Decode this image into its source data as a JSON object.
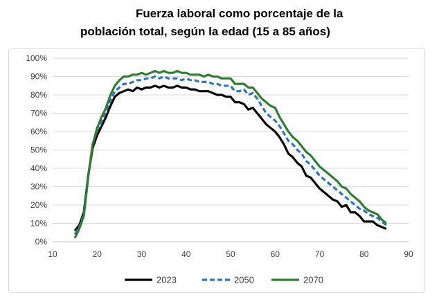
{
  "chart_data": {
    "type": "line",
    "title_lines": [
      "Fuerza laboral como porcentaje de la",
      "población total, según la edad (15 a 85 años)"
    ],
    "xlabel": "",
    "ylabel": "",
    "xlim": [
      10,
      90
    ],
    "ylim": [
      0,
      100
    ],
    "x_ticks": [
      "10",
      "20",
      "30",
      "40",
      "50",
      "60",
      "70",
      "80",
      "90"
    ],
    "y_ticks": [
      "0%",
      "10%",
      "20%",
      "30%",
      "40%",
      "50%",
      "60%",
      "70%",
      "80%",
      "90%",
      "100%"
    ],
    "grid": true,
    "legend_position": "bottom",
    "series": [
      {
        "name": "2023",
        "color": "#000000",
        "dash": "solid",
        "x": [
          15,
          16,
          17,
          18,
          19,
          20,
          21,
          22,
          23,
          24,
          25,
          26,
          27,
          28,
          29,
          30,
          31,
          32,
          33,
          34,
          35,
          36,
          37,
          38,
          39,
          40,
          41,
          42,
          43,
          44,
          45,
          46,
          47,
          48,
          49,
          50,
          51,
          52,
          53,
          54,
          55,
          56,
          57,
          58,
          59,
          60,
          61,
          62,
          63,
          64,
          65,
          66,
          67,
          68,
          69,
          70,
          71,
          72,
          73,
          74,
          75,
          76,
          77,
          78,
          79,
          80,
          81,
          82,
          83,
          84,
          85
        ],
        "y": [
          6,
          9,
          16,
          36,
          51,
          58,
          63,
          68,
          74,
          79,
          81,
          82,
          83,
          82,
          84,
          83,
          84,
          84,
          85,
          84,
          85,
          84,
          84,
          85,
          84,
          84,
          83,
          83,
          82,
          82,
          82,
          81,
          80,
          80,
          79,
          79,
          76,
          76,
          75,
          72,
          73,
          70,
          67,
          64,
          62,
          60,
          57,
          53,
          48,
          46,
          43,
          41,
          36,
          35,
          32,
          29,
          27,
          25,
          23,
          22,
          19,
          20,
          16,
          16,
          14,
          11,
          11,
          11,
          9,
          8,
          7
        ]
      },
      {
        "name": "2050",
        "color": "#2e75b6",
        "dash": "dashed",
        "x": [
          15,
          16,
          17,
          18,
          19,
          20,
          21,
          22,
          23,
          24,
          25,
          26,
          27,
          28,
          29,
          30,
          31,
          32,
          33,
          34,
          35,
          36,
          37,
          38,
          39,
          40,
          41,
          42,
          43,
          44,
          45,
          46,
          47,
          48,
          49,
          50,
          51,
          52,
          53,
          54,
          55,
          56,
          57,
          58,
          59,
          60,
          61,
          62,
          63,
          64,
          65,
          66,
          67,
          68,
          69,
          70,
          71,
          72,
          73,
          74,
          75,
          76,
          77,
          78,
          79,
          80,
          81,
          82,
          83,
          84,
          85
        ],
        "y": [
          4,
          8,
          15,
          36,
          53,
          61,
          66,
          71,
          77,
          82,
          84,
          86,
          86,
          87,
          88,
          88,
          89,
          89,
          90,
          89,
          90,
          89,
          89,
          89,
          88,
          89,
          88,
          88,
          87,
          87,
          87,
          86,
          86,
          85,
          85,
          85,
          82,
          82,
          83,
          80,
          81,
          78,
          74,
          70,
          68,
          66,
          63,
          59,
          55,
          53,
          50,
          48,
          44,
          42,
          39,
          36,
          34,
          32,
          30,
          28,
          26,
          24,
          22,
          20,
          18,
          17,
          15,
          14,
          13,
          11,
          9
        ]
      },
      {
        "name": "2070",
        "color": "#2e7d32",
        "dash": "solid",
        "x": [
          15,
          16,
          17,
          18,
          19,
          20,
          21,
          22,
          23,
          24,
          25,
          26,
          27,
          28,
          29,
          30,
          31,
          32,
          33,
          34,
          35,
          36,
          37,
          38,
          39,
          40,
          41,
          42,
          43,
          44,
          45,
          46,
          47,
          48,
          49,
          50,
          51,
          52,
          53,
          54,
          55,
          56,
          57,
          58,
          59,
          60,
          61,
          62,
          63,
          64,
          65,
          66,
          67,
          68,
          69,
          70,
          71,
          72,
          73,
          74,
          75,
          76,
          77,
          78,
          79,
          80,
          81,
          82,
          83,
          84,
          85
        ],
        "y": [
          2,
          7,
          14,
          35,
          53,
          62,
          68,
          73,
          80,
          85,
          88,
          90,
          90,
          91,
          91,
          92,
          91,
          92,
          93,
          92,
          93,
          92,
          92,
          93,
          92,
          92,
          91,
          91,
          91,
          90,
          91,
          90,
          90,
          89,
          89,
          89,
          86,
          86,
          86,
          84,
          84,
          81,
          78,
          76,
          74,
          73,
          68,
          64,
          60,
          57,
          55,
          52,
          49,
          47,
          44,
          41,
          39,
          37,
          35,
          33,
          30,
          29,
          26,
          24,
          22,
          19,
          17,
          16,
          15,
          12,
          10
        ]
      }
    ]
  }
}
